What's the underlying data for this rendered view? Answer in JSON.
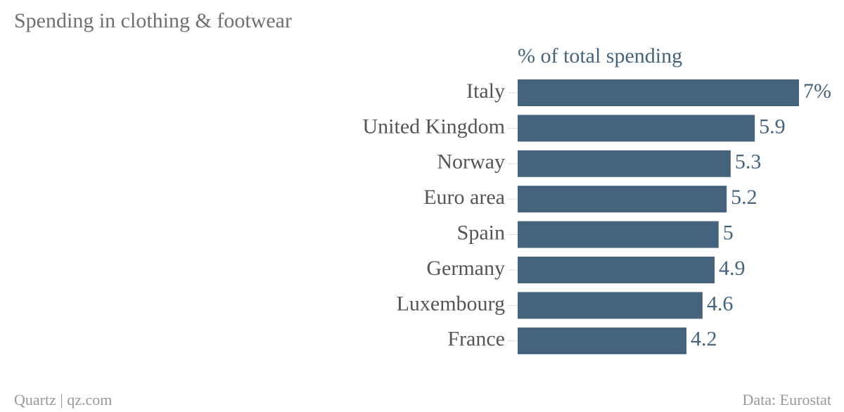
{
  "chart_data": {
    "type": "bar",
    "orientation": "horizontal",
    "title": "Spending in clothing & footwear",
    "subtitle": "% of total spending",
    "categories": [
      "Italy",
      "United Kingdom",
      "Norway",
      "Euro area",
      "Spain",
      "Germany",
      "Luxembourg",
      "France"
    ],
    "values": [
      7,
      5.9,
      5.3,
      5.2,
      5,
      4.9,
      4.6,
      4.2
    ],
    "value_labels": [
      "7%",
      "5.9",
      "5.3",
      "5.2",
      "5",
      "4.9",
      "4.6",
      "4.2"
    ],
    "color": "#46637e",
    "credit": "Quartz | qz.com",
    "source": "Data: Eurostat"
  }
}
